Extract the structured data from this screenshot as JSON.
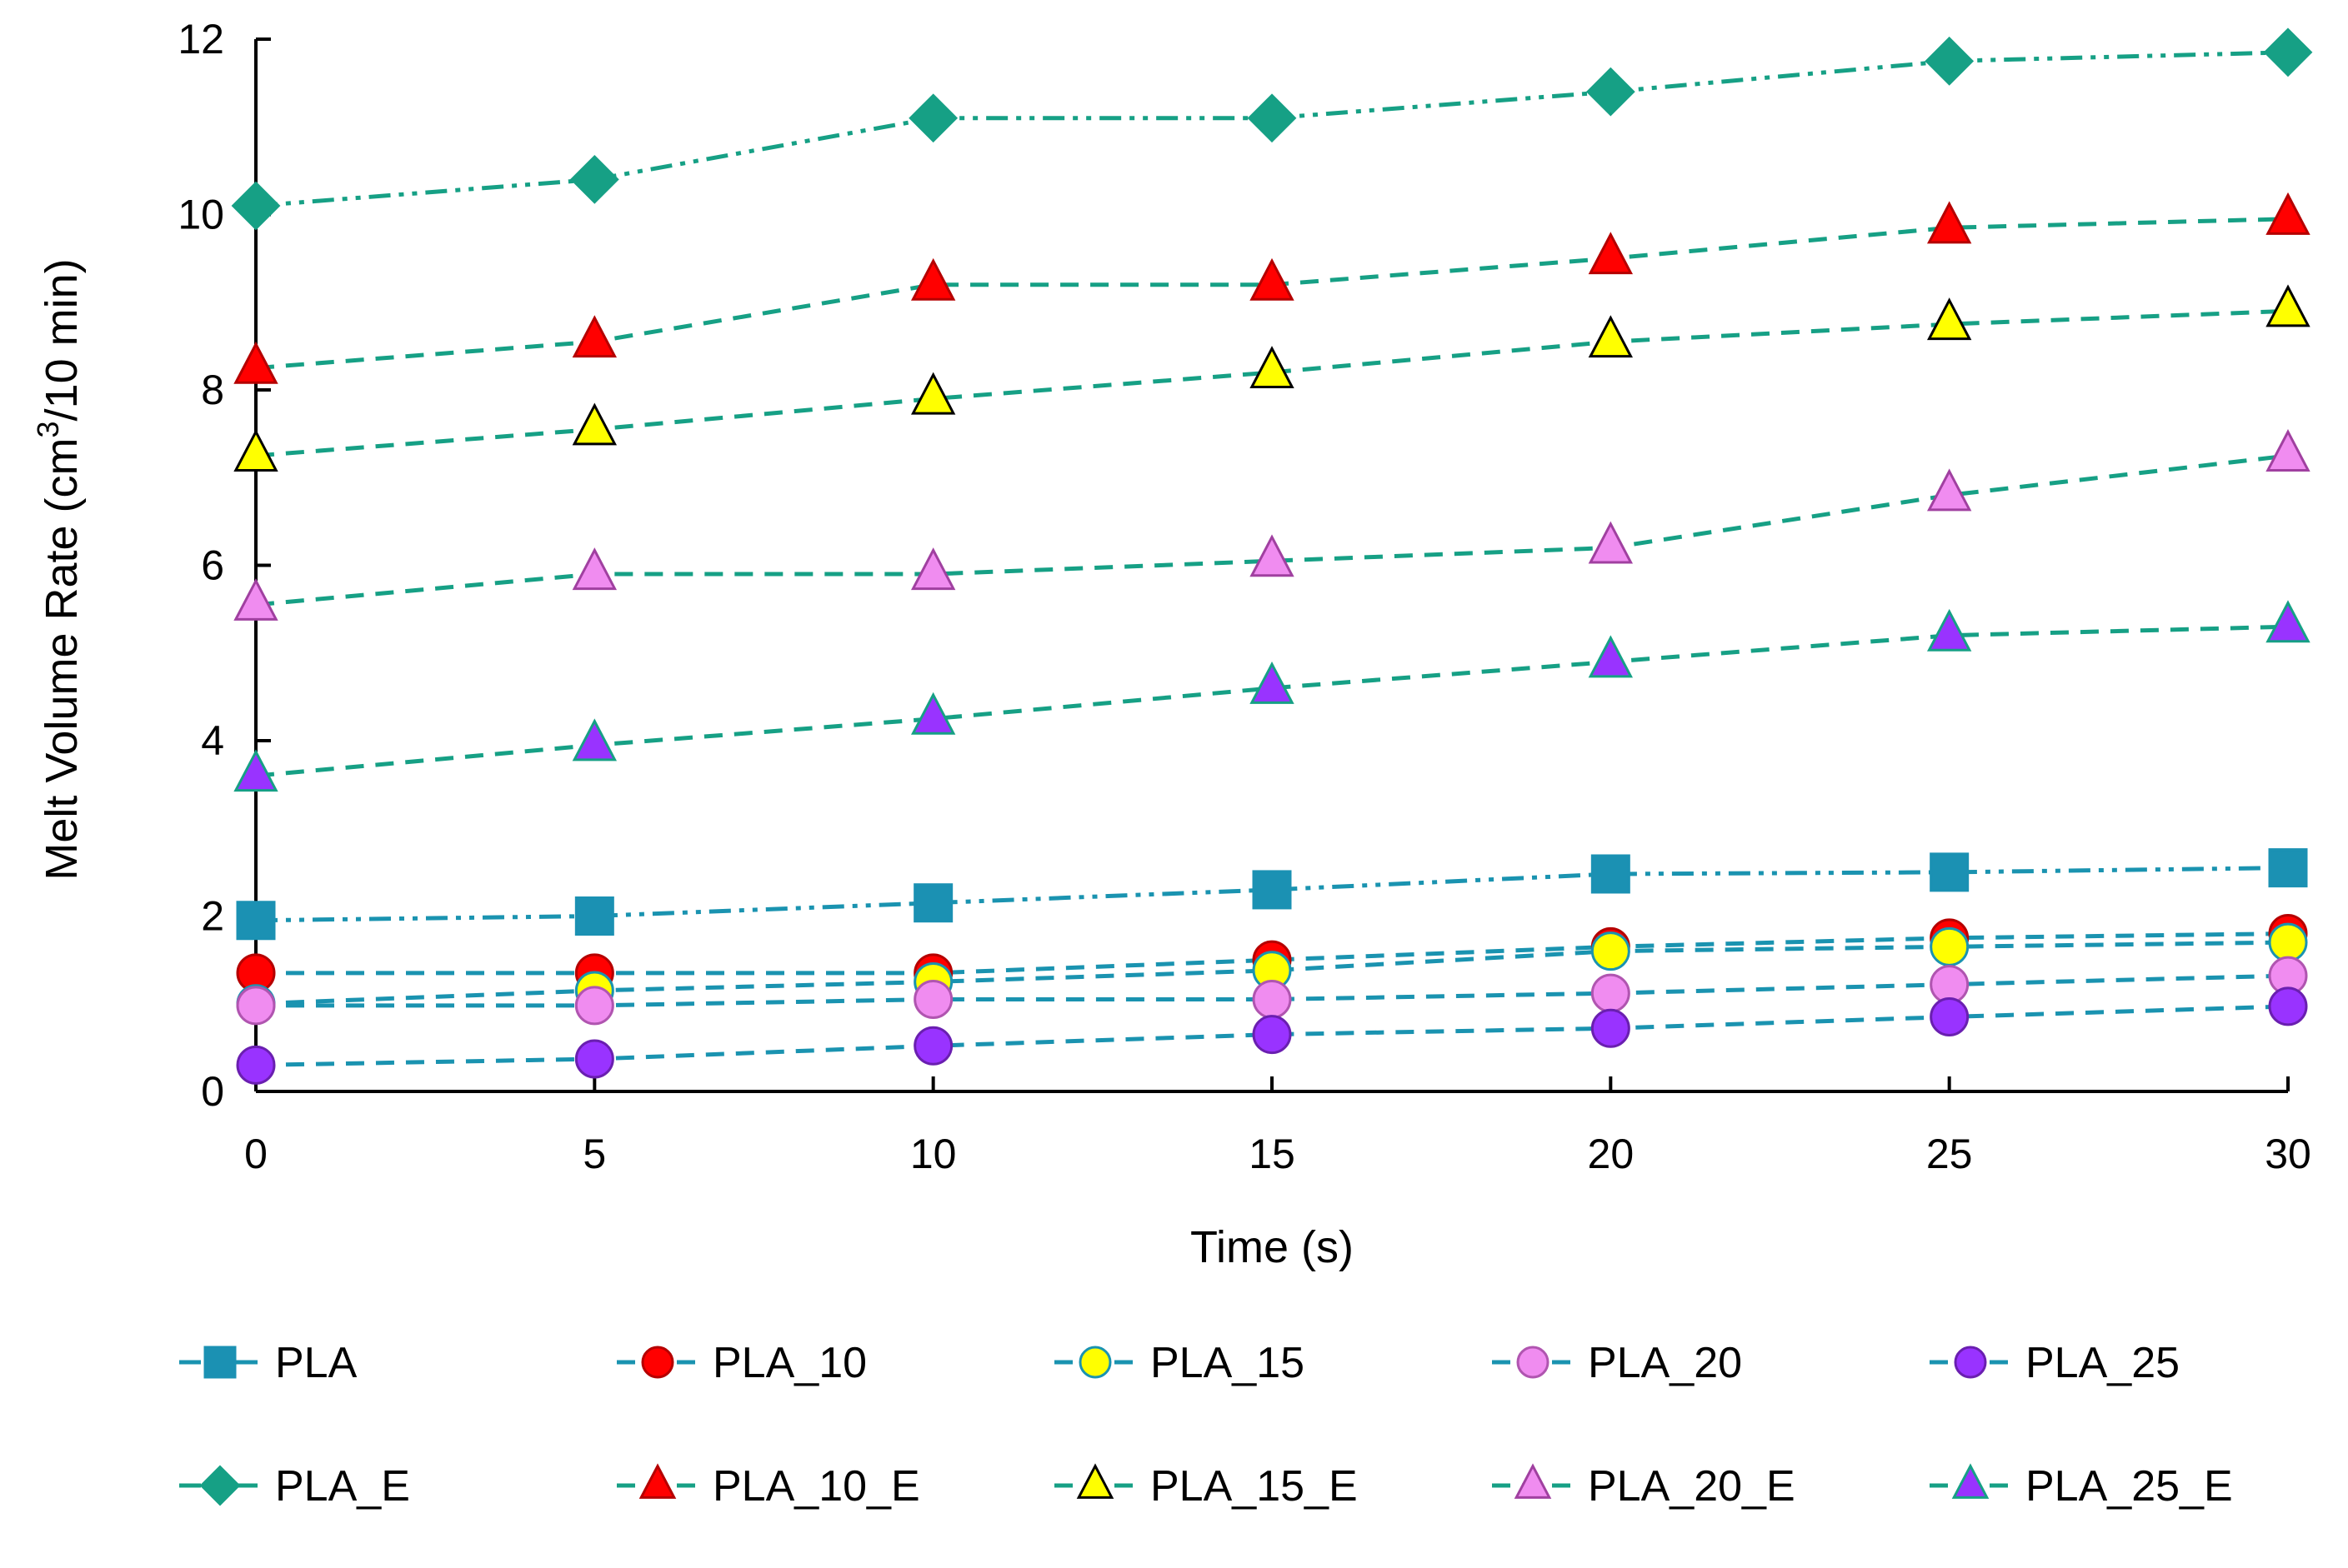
{
  "chart_data": {
    "type": "line",
    "xlabel": "Time (s)",
    "ylabel": {
      "prefix": "Melt Volume Rate (cm",
      "superscript": "3",
      "suffix": "/10 min)"
    },
    "xlim": [
      0,
      30
    ],
    "ylim": [
      0,
      12
    ],
    "x_ticks": [
      "0",
      "5",
      "10",
      "15",
      "20",
      "25",
      "30"
    ],
    "y_ticks": [
      "0",
      "2",
      "4",
      "6",
      "8",
      "10",
      "12"
    ],
    "grid": false,
    "legend_position": "bottom",
    "x": [
      0,
      5,
      10,
      15,
      20,
      25,
      30
    ],
    "series": [
      {
        "name": "PLA",
        "values": [
          1.95,
          2.0,
          2.15,
          2.3,
          2.48,
          2.5,
          2.55
        ],
        "marker": "square",
        "fill": "#1b91b3",
        "stroke": "#1b91b3",
        "line_color": "#1a93b0",
        "dash": "dashdotdot"
      },
      {
        "name": "PLA_10",
        "values": [
          1.35,
          1.35,
          1.35,
          1.5,
          1.65,
          1.75,
          1.8
        ],
        "marker": "circle",
        "fill": "#ff0000",
        "stroke": "#b50000",
        "line_color": "#1a93b0",
        "dash": "dash"
      },
      {
        "name": "PLA_15",
        "values": [
          1.0,
          1.15,
          1.25,
          1.38,
          1.6,
          1.65,
          1.7
        ],
        "marker": "circle",
        "fill": "#ffff00",
        "stroke": "#1a93b0",
        "line_color": "#1a93b0",
        "dash": "dash"
      },
      {
        "name": "PLA_20",
        "values": [
          0.98,
          0.98,
          1.05,
          1.05,
          1.12,
          1.22,
          1.32
        ],
        "marker": "circle",
        "fill": "#f08cf0",
        "stroke": "#b055b0",
        "line_color": "#1a93b0",
        "dash": "dash"
      },
      {
        "name": "PLA_25",
        "values": [
          0.3,
          0.37,
          0.52,
          0.65,
          0.72,
          0.85,
          0.97
        ],
        "marker": "circle",
        "fill": "#9933ff",
        "stroke": "#6a1fb0",
        "line_color": "#1a93b0",
        "dash": "dash"
      },
      {
        "name": "PLA_E",
        "values": [
          10.1,
          10.4,
          11.1,
          11.1,
          11.4,
          11.75,
          11.85
        ],
        "marker": "diamond",
        "fill": "#16a085",
        "stroke": "#16a085",
        "line_color": "#16a085",
        "dash": "dashdotdot"
      },
      {
        "name": "PLA_10_E",
        "values": [
          8.25,
          8.55,
          9.2,
          9.2,
          9.5,
          9.85,
          9.95
        ],
        "marker": "triangle",
        "fill": "#ff0000",
        "stroke": "#b50000",
        "line_color": "#16a085",
        "dash": "dash"
      },
      {
        "name": "PLA_15_E",
        "values": [
          7.25,
          7.55,
          7.9,
          8.2,
          8.55,
          8.75,
          8.9
        ],
        "marker": "triangle",
        "fill": "#ffff00",
        "stroke": "#000000",
        "line_color": "#16a085",
        "dash": "dash"
      },
      {
        "name": "PLA_20_E",
        "values": [
          5.55,
          5.9,
          5.9,
          6.05,
          6.2,
          6.8,
          7.25
        ],
        "marker": "triangle",
        "fill": "#f08cf0",
        "stroke": "#a040a0",
        "line_color": "#16a085",
        "dash": "dash"
      },
      {
        "name": "PLA_25_E",
        "values": [
          3.6,
          3.95,
          4.25,
          4.6,
          4.9,
          5.2,
          5.3
        ],
        "marker": "triangle",
        "fill": "#9933ff",
        "stroke": "#16a085",
        "line_color": "#16a085",
        "dash": "dash"
      }
    ]
  }
}
